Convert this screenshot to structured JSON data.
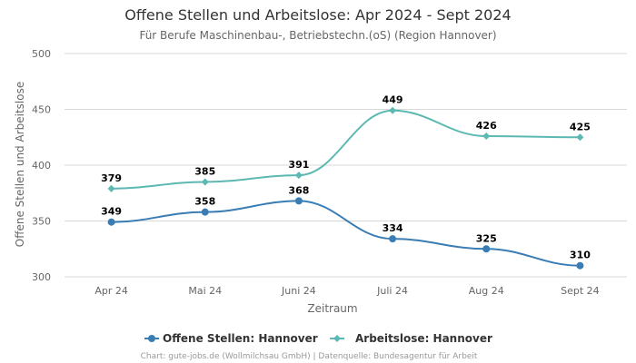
{
  "title": "Offene Stellen und Arbeitslose: Apr 2024 - Sept 2024",
  "subtitle": "Für Berufe Maschinenbau-, Betriebstechn.(oS) (Region Hannover)",
  "credits": "Chart: gute-jobs.de (Wollmilchsau GmbH) | Datenquelle: Bundesagentur für Arbeit",
  "chart_data": {
    "type": "line",
    "title": "Offene Stellen und Arbeitslose: Apr 2024 - Sept 2024",
    "subtitle": "Für Berufe Maschinenbau-, Betriebstechn.(oS) (Region Hannover)",
    "xlabel": "Zeitraum",
    "ylabel": "Offene Stellen und Arbeitslose",
    "categories": [
      "Apr 24",
      "Mai 24",
      "Juni 24",
      "Juli 24",
      "Aug 24",
      "Sept 24"
    ],
    "ylim": [
      300,
      500
    ],
    "yticks": [
      300,
      350,
      400,
      450,
      500
    ],
    "grid": true,
    "legend_position": "bottom",
    "series": [
      {
        "name": "Offene Stellen: Hannover",
        "color": "#3a7db5",
        "marker": "circle",
        "values": [
          349,
          358,
          368,
          334,
          325,
          310
        ]
      },
      {
        "name": "Arbeitslose: Hannover",
        "color": "#5cb8b2",
        "marker": "diamond",
        "values": [
          379,
          385,
          391,
          449,
          426,
          425
        ]
      }
    ]
  }
}
